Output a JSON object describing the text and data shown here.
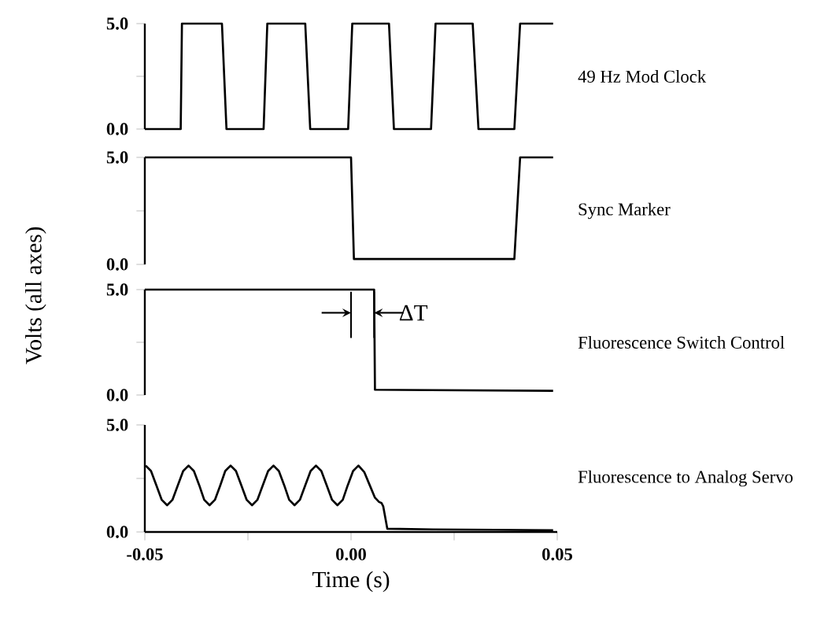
{
  "chart_data": [
    {
      "type": "line",
      "xlim": [
        -0.05,
        0.05
      ],
      "ylim": [
        0,
        5
      ],
      "yticks": [
        {
          "value": 0,
          "label": "0.0"
        },
        {
          "value": 2.5,
          "label": null
        },
        {
          "value": 5,
          "label": "5.0"
        }
      ],
      "tick_labels": "y",
      "series": [
        {
          "name": "49 Hz Mod Clock",
          "color": "#000000",
          "x": [
            -0.05,
            -0.0413,
            -0.041,
            -0.0313,
            -0.0302,
            -0.0212,
            -0.0203,
            -0.0111,
            -0.0099,
            -0.0007,
            0.0003,
            0.0092,
            0.0104,
            0.0194,
            0.0205,
            0.0295,
            0.0309,
            0.0396,
            0.041,
            0.049
          ],
          "values": [
            0,
            0,
            5,
            5,
            0,
            0,
            5,
            5,
            0,
            0,
            5,
            5,
            0,
            0,
            5,
            5,
            0,
            0,
            5,
            5
          ]
        }
      ]
    },
    {
      "type": "line",
      "ylabel": "Volts (all axes)",
      "xlim": [
        -0.05,
        0.05
      ],
      "ylim": [
        0,
        5
      ],
      "yticks": [
        {
          "value": 0,
          "label": "0.0"
        },
        {
          "value": 2.5,
          "label": null
        },
        {
          "value": 5,
          "label": "5.0"
        }
      ],
      "tick_labels": "y",
      "series": [
        {
          "name": "Sync Marker",
          "color": "#000000",
          "x": [
            -0.05,
            0.0,
            0.0007,
            0.0396,
            0.041,
            0.049
          ],
          "values": [
            5,
            5,
            0.25,
            0.25,
            5,
            5
          ]
        }
      ]
    },
    {
      "type": "line",
      "xlim": [
        -0.05,
        0.05
      ],
      "ylim": [
        0,
        5
      ],
      "yticks": [
        {
          "value": 0,
          "label": "0.0"
        },
        {
          "value": 2.5,
          "label": null
        },
        {
          "value": 5,
          "label": "5.0"
        }
      ],
      "tick_labels": "y",
      "annotations": [
        {
          "text": "ΔT",
          "x": 0.0056,
          "y": 3.9
        }
      ],
      "series": [
        {
          "name": "Fluorescence Switch Control",
          "color": "#000000",
          "x": [
            -0.05,
            0.0056,
            0.0058,
            0.049
          ],
          "values": [
            5,
            5,
            0.25,
            0.2
          ]
        }
      ]
    },
    {
      "type": "line",
      "xlabel": "Time (s)",
      "xlim": [
        -0.05,
        0.05
      ],
      "ylim": [
        0,
        5
      ],
      "xticks": [
        -0.05,
        {
          "value": -0.025,
          "label": null
        },
        {
          "value": 0,
          "label": "0.00"
        },
        {
          "value": 0.025,
          "label": null
        },
        0.05
      ],
      "yticks": [
        {
          "value": 0,
          "label": "0.0"
        },
        {
          "value": 2.5,
          "label": null
        },
        {
          "value": 5,
          "label": "5.0"
        }
      ],
      "series": [
        {
          "name": "Fluorescence to Analog Servo",
          "color": "#000000",
          "x": [
            -0.0498,
            -0.0485,
            -0.0472,
            -0.0459,
            -0.0446,
            -0.0433,
            -0.042,
            -0.0407,
            -0.0394,
            -0.0381,
            -0.0368,
            -0.0356,
            -0.0343,
            -0.033,
            -0.0317,
            -0.0305,
            -0.0292,
            -0.0279,
            -0.0266,
            -0.0253,
            -0.024,
            -0.0227,
            -0.0214,
            -0.0201,
            -0.0188,
            -0.0175,
            -0.0162,
            -0.015,
            -0.0137,
            -0.0124,
            -0.0111,
            -0.0098,
            -0.0085,
            -0.0072,
            -0.0059,
            -0.0046,
            -0.0033,
            -0.002,
            -0.0008,
            0.0005,
            0.0018,
            0.0032,
            0.0045,
            0.0058,
            0.0068,
            0.0074,
            0.0078,
            0.0088,
            0.02,
            0.035,
            0.049
          ],
          "values": [
            3.1,
            2.85,
            2.18,
            1.5,
            1.25,
            1.5,
            2.18,
            2.85,
            3.1,
            2.85,
            2.18,
            1.5,
            1.25,
            1.5,
            2.18,
            2.85,
            3.1,
            2.85,
            2.18,
            1.5,
            1.25,
            1.5,
            2.18,
            2.85,
            3.1,
            2.85,
            2.18,
            1.5,
            1.25,
            1.5,
            2.18,
            2.85,
            3.1,
            2.85,
            2.18,
            1.5,
            1.25,
            1.5,
            2.18,
            2.85,
            3.1,
            2.8,
            2.2,
            1.6,
            1.4,
            1.35,
            1.2,
            0.15,
            0.12,
            0.1,
            0.08
          ]
        }
      ]
    }
  ]
}
